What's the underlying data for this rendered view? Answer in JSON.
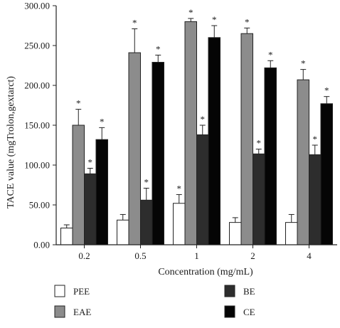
{
  "chart_data": {
    "type": "bar",
    "title": "",
    "xlabel": "Concentration (mg/mL)",
    "ylabel": "TACE value (mgTrolon,gextarct)",
    "ylim": [
      0,
      300
    ],
    "yticks": [
      "0.00",
      "50.00",
      "100.00",
      "150.00",
      "200.00",
      "250.00",
      "300.00"
    ],
    "categories": [
      "0.2",
      "0.5",
      "1",
      "2",
      "4"
    ],
    "significance_marker": "*",
    "legend_position": "bottom",
    "grid": false,
    "series": [
      {
        "name": "PEE",
        "color": "#ffffff",
        "values": [
          21,
          31,
          52,
          28,
          28
        ],
        "errors": [
          4,
          7,
          11,
          6,
          10
        ],
        "significant": [
          false,
          false,
          true,
          false,
          false
        ]
      },
      {
        "name": "EAE",
        "color": "#8c8c8c",
        "values": [
          150,
          241,
          280,
          265,
          207
        ],
        "errors": [
          20,
          30,
          4,
          7,
          13
        ],
        "significant": [
          true,
          true,
          true,
          true,
          true
        ]
      },
      {
        "name": "BE",
        "color": "#2d2d2d",
        "values": [
          89,
          56,
          138,
          114,
          113
        ],
        "errors": [
          7,
          15,
          12,
          6,
          12
        ],
        "significant": [
          true,
          true,
          true,
          true,
          true
        ]
      },
      {
        "name": "CE",
        "color": "#050505",
        "values": [
          132,
          229,
          260,
          222,
          177
        ],
        "errors": [
          15,
          9,
          15,
          9,
          9
        ],
        "significant": [
          true,
          true,
          true,
          true,
          true
        ]
      }
    ]
  }
}
